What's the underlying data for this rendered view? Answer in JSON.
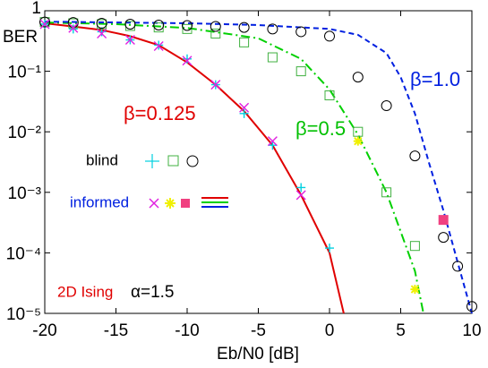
{
  "chart_data": {
    "type": "line",
    "xlabel": "Eb/N0 [dB]",
    "ylabel": "BER",
    "xlim": [
      -20,
      10
    ],
    "xticks": [
      -20,
      -15,
      -10,
      -5,
      0,
      5,
      10
    ],
    "ylim": [
      1e-05,
      1
    ],
    "ylog": true,
    "yticks": [
      1,
      {
        "value": 0.1,
        "label": "10⁻¹"
      },
      {
        "value": 0.01,
        "label": "10⁻²"
      },
      {
        "value": 0.001,
        "label": "10⁻³"
      },
      {
        "value": 0.0001,
        "label": "10⁻⁴"
      },
      {
        "value": 1e-05,
        "label": "10⁻⁵"
      }
    ],
    "series": [
      {
        "color": "#e00000",
        "style": "solid",
        "x": [
          -20,
          -18,
          -16,
          -14,
          -12,
          -10,
          -8,
          -6,
          -4,
          -2,
          0,
          1
        ],
        "values": [
          0.62,
          0.55,
          0.48,
          0.38,
          0.27,
          0.14,
          0.06,
          0.022,
          0.006,
          0.0009,
          0.0001,
          1e-05
        ]
      },
      {
        "color": "#00d000",
        "style": "dash-dot",
        "x": [
          -20,
          -15,
          -10,
          -5,
          -2,
          0,
          2,
          4,
          6,
          6.6
        ],
        "values": [
          0.64,
          0.6,
          0.52,
          0.35,
          0.16,
          0.05,
          0.009,
          0.001,
          5e-05,
          1e-05
        ]
      },
      {
        "color": "#0020e0",
        "style": "dashed",
        "x": [
          -20,
          -10,
          -5,
          0,
          2,
          4,
          5,
          6,
          7,
          8,
          9,
          10
        ],
        "values": [
          0.66,
          0.62,
          0.58,
          0.5,
          0.4,
          0.2,
          0.08,
          0.02,
          0.003,
          0.0005,
          7e-05,
          1e-05
        ]
      },
      {
        "color": "#00d0e0",
        "marker": "plus",
        "x": [
          -20,
          -18,
          -16,
          -14,
          -12,
          -10,
          -8,
          -6,
          -4,
          -2,
          0
        ],
        "values": [
          0.6,
          0.5,
          0.45,
          0.33,
          0.27,
          0.16,
          0.06,
          0.02,
          0.006,
          0.0012,
          0.00012
        ]
      },
      {
        "color": "#40b040",
        "marker": "square",
        "x": [
          -20,
          -18,
          -16,
          -14,
          -12,
          -10,
          -8,
          -6,
          -4,
          -2,
          0,
          2,
          4,
          6
        ],
        "values": [
          0.65,
          0.62,
          0.6,
          0.56,
          0.53,
          0.5,
          0.42,
          0.3,
          0.17,
          0.1,
          0.04,
          0.01,
          0.001,
          0.00013
        ]
      },
      {
        "color": "#000000",
        "marker": "circle",
        "x": [
          -20,
          -18,
          -16,
          -14,
          -12,
          -10,
          -8,
          -6,
          -4,
          -2,
          0,
          2,
          4,
          6,
          8,
          9,
          10
        ],
        "values": [
          0.65,
          0.64,
          0.62,
          0.6,
          0.58,
          0.57,
          0.55,
          0.53,
          0.5,
          0.45,
          0.38,
          0.08,
          0.027,
          0.004,
          0.00018,
          6e-05,
          1.3e-05
        ]
      },
      {
        "color": "#e020e0",
        "marker": "x",
        "x": [
          -20,
          -18,
          -16,
          -14,
          -12,
          -10,
          -8,
          -6,
          -4,
          -2
        ],
        "values": [
          0.6,
          0.52,
          0.42,
          0.33,
          0.26,
          0.15,
          0.06,
          0.025,
          0.007,
          0.0009
        ]
      },
      {
        "color": "#f0f000",
        "marker": "star",
        "x": [
          2,
          6
        ],
        "values": [
          0.007,
          2.5e-05
        ]
      },
      {
        "color": "#f04080",
        "marker": "filled-square",
        "x": [
          8
        ],
        "values": [
          0.00035
        ]
      }
    ],
    "annotations": [
      {
        "text": "β=0.125",
        "color": "#e00000"
      },
      {
        "text": "β=0.5",
        "color": "#00c000"
      },
      {
        "text": "β=1.0",
        "color": "#0020e0"
      },
      {
        "text": "blind",
        "color": "#000000"
      },
      {
        "text": "informed",
        "color": "#0020e0"
      },
      {
        "text": "2D Ising",
        "color": "#e00000"
      },
      {
        "text": "α=1.5",
        "color": "#000000"
      }
    ]
  }
}
